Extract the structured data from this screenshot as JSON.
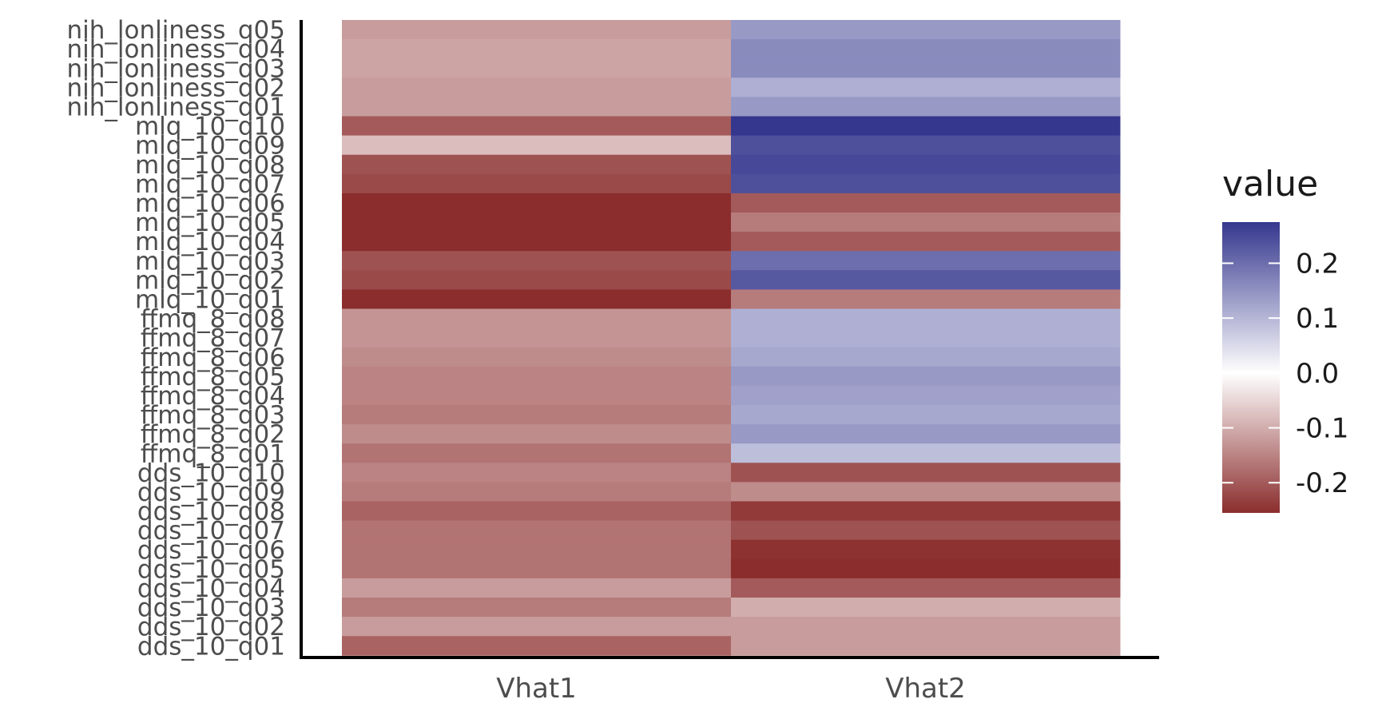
{
  "chart_data": {
    "type": "heatmap",
    "title": "",
    "xlabel": "",
    "ylabel": "",
    "columns": [
      "Vhat1",
      "Vhat2"
    ],
    "rows": [
      "nih_lonliness_q05",
      "nih_lonliness_q04",
      "nih_lonliness_q03",
      "nih_lonliness_q02",
      "nih_lonliness_q01",
      "mlq_10_q10",
      "mlq_10_q09",
      "mlq_10_q08",
      "mlq_10_q07",
      "mlq_10_q06",
      "mlq_10_q05",
      "mlq_10_q04",
      "mlq_10_q03",
      "mlq_10_q02",
      "mlq_10_q01",
      "ffmq_8_q08",
      "ffmq_8_q07",
      "ffmq_8_q06",
      "ffmq_8_q05",
      "ffmq_8_q04",
      "ffmq_8_q03",
      "ffmq_8_q02",
      "ffmq_8_q01",
      "dds_10_q10",
      "dds_10_q09",
      "dds_10_q08",
      "dds_10_q07",
      "dds_10_q06",
      "dds_10_q05",
      "dds_10_q04",
      "dds_10_q03",
      "dds_10_q02",
      "dds_10_q01"
    ],
    "values": [
      [
        -0.12,
        0.14
      ],
      [
        -0.11,
        0.16
      ],
      [
        -0.11,
        0.16
      ],
      [
        -0.12,
        0.11
      ],
      [
        -0.12,
        0.14
      ],
      [
        -0.2,
        0.29
      ],
      [
        -0.08,
        0.24
      ],
      [
        -0.21,
        0.25
      ],
      [
        -0.22,
        0.24
      ],
      [
        -0.26,
        -0.2
      ],
      [
        -0.28,
        -0.16
      ],
      [
        -0.27,
        -0.2
      ],
      [
        -0.21,
        0.2
      ],
      [
        -0.22,
        0.23
      ],
      [
        -0.27,
        -0.16
      ],
      [
        -0.13,
        0.11
      ],
      [
        -0.13,
        0.11
      ],
      [
        -0.14,
        0.12
      ],
      [
        -0.15,
        0.14
      ],
      [
        -0.15,
        0.13
      ],
      [
        -0.16,
        0.12
      ],
      [
        -0.14,
        0.14
      ],
      [
        -0.17,
        0.09
      ],
      [
        -0.15,
        -0.21
      ],
      [
        -0.16,
        -0.14
      ],
      [
        -0.19,
        -0.24
      ],
      [
        -0.17,
        -0.21
      ],
      [
        -0.17,
        -0.25
      ],
      [
        -0.17,
        -0.26
      ],
      [
        -0.12,
        -0.2
      ],
      [
        -0.16,
        -0.1
      ],
      [
        -0.12,
        -0.12
      ],
      [
        -0.19,
        -0.12
      ]
    ],
    "legend": {
      "title": "value",
      "position": "right",
      "min": -0.255,
      "max": 0.275,
      "ticks": [
        0.2,
        0.1,
        0.0,
        -0.1,
        -0.2
      ],
      "tick_labels": [
        "0.2",
        "0.1",
        "0.0",
        "-0.1",
        "-0.2"
      ],
      "colors": {
        "low": "#8b2d2d",
        "mid": "#ffffff",
        "high": "#35378e"
      }
    }
  }
}
